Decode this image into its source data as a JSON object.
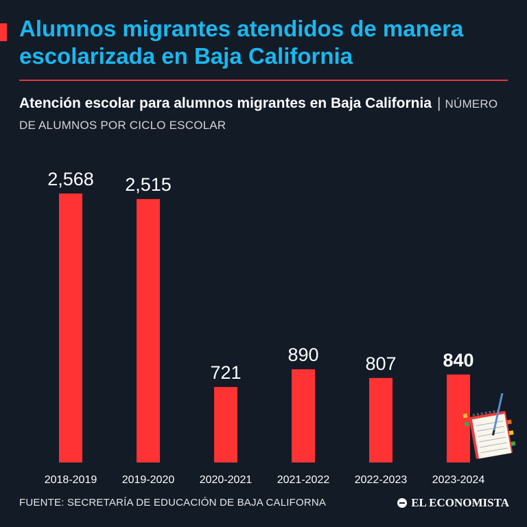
{
  "header": {
    "title": "Alumnos migrantes atendidos de manera escolarizada en Baja California",
    "subtitle_main": "Atención escolar para alumnos migrantes en Baja California",
    "subtitle_separator": "|",
    "subtitle_unit": "NÚMERO DE ALUMNOS POR CICLO ESCOLAR"
  },
  "footer": {
    "source": "FUENTE: SECRETARÍA DE EDUCACIÓN DE BAJA CALIFORNA",
    "brand": "EL ECONOMISTA"
  },
  "colors": {
    "background": "#131b27",
    "title": "#19b8ef",
    "bar": "#ff3333",
    "rule": "#e03a3e",
    "text": "#ffffff"
  },
  "decoration": {
    "icon": "notebook-pencil-icon"
  },
  "chart_data": {
    "type": "bar",
    "title": "Atención escolar para alumnos migrantes en Baja California",
    "xlabel": "",
    "ylabel": "NÚMERO DE ALUMNOS POR CICLO ESCOLAR",
    "categories": [
      "2018-2019",
      "2019-2020",
      "2020-2021",
      "2021-2022",
      "2022-2023",
      "2023-2024"
    ],
    "values": [
      2568,
      2515,
      721,
      890,
      807,
      840
    ],
    "value_labels": [
      "2,568",
      "2,515",
      "721",
      "890",
      "807",
      "840"
    ],
    "highlight_index": 5,
    "ylim": [
      0,
      2568
    ],
    "grid": false,
    "legend": "none"
  }
}
